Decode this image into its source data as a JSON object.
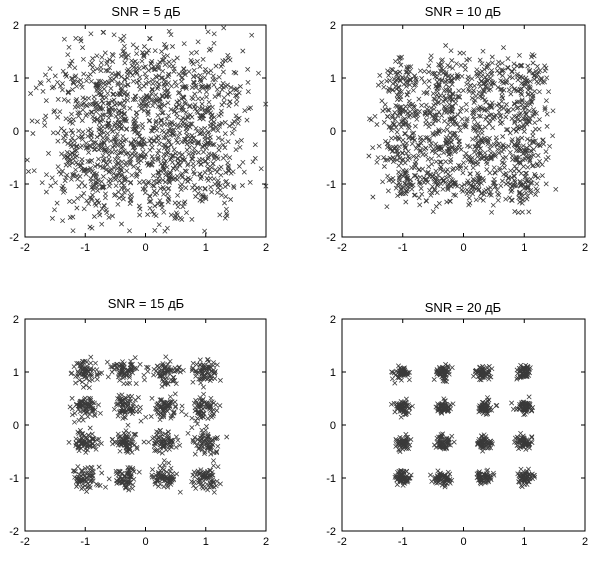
{
  "chart_data": [
    {
      "type": "scatter",
      "title": "SNR = 5 дБ",
      "snr_db": 5,
      "xlim": [
        -2,
        2
      ],
      "ylim": [
        -2,
        2
      ],
      "xticks": [
        "-2",
        "-1",
        "0",
        "1",
        "2"
      ],
      "yticks": [
        "2",
        "1",
        "0",
        "-1",
        "-2"
      ],
      "marker": "x",
      "constellation": "16-QAM",
      "levels": [
        -1,
        -0.333,
        0.333,
        1
      ],
      "noise_spread": 0.38,
      "points_per_cluster": 90
    },
    {
      "type": "scatter",
      "title": "SNR = 10 дБ",
      "snr_db": 10,
      "xlim": [
        -2,
        2
      ],
      "ylim": [
        -2,
        2
      ],
      "xticks": [
        "-2",
        "-1",
        "0",
        "1",
        "2"
      ],
      "yticks": [
        "2",
        "1",
        "0",
        "-1",
        "-2"
      ],
      "marker": "x",
      "constellation": "16-QAM",
      "levels": [
        -1,
        -0.333,
        0.333,
        1
      ],
      "noise_spread": 0.2,
      "points_per_cluster": 80
    },
    {
      "type": "scatter",
      "title": "SNR = 15 дБ",
      "snr_db": 15,
      "xlim": [
        -2,
        2
      ],
      "ylim": [
        -2,
        2
      ],
      "xticks": [
        "-2",
        "-1",
        "0",
        "1",
        "2"
      ],
      "yticks": [
        "2",
        "1",
        "0",
        "-1",
        "-2"
      ],
      "marker": "x",
      "constellation": "16-QAM",
      "levels": [
        -1,
        -0.333,
        0.333,
        1
      ],
      "noise_spread": 0.11,
      "points_per_cluster": 70
    },
    {
      "type": "scatter",
      "title": "SNR = 20 дБ",
      "snr_db": 20,
      "xlim": [
        -2,
        2
      ],
      "ylim": [
        -2,
        2
      ],
      "xticks": [
        "-2",
        "-1",
        "0",
        "1",
        "2"
      ],
      "yticks": [
        "2",
        "1",
        "0",
        "-1",
        "-2"
      ],
      "marker": "x",
      "constellation": "16-QAM",
      "levels": [
        -1,
        -0.333,
        0.333,
        1
      ],
      "noise_spread": 0.065,
      "points_per_cluster": 60
    }
  ]
}
